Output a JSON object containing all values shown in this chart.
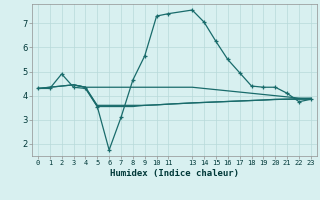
{
  "xlabel": "Humidex (Indice chaleur)",
  "bg_color": "#d8f0f0",
  "line_color": "#196b6b",
  "grid_color": "#b8dada",
  "xlim": [
    -0.5,
    23.5
  ],
  "ylim": [
    1.5,
    7.8
  ],
  "yticks": [
    2,
    3,
    4,
    5,
    6,
    7
  ],
  "curve1_x": [
    0,
    1,
    2,
    3,
    4,
    5,
    6,
    7,
    8,
    9,
    10,
    11,
    13,
    14,
    15,
    16,
    17,
    18,
    19,
    20,
    21,
    22,
    23
  ],
  "curve1_y": [
    4.3,
    4.3,
    4.9,
    4.35,
    4.3,
    3.55,
    1.75,
    3.1,
    4.65,
    5.65,
    7.3,
    7.4,
    7.55,
    7.05,
    6.25,
    5.5,
    4.95,
    4.4,
    4.35,
    4.35,
    4.1,
    3.75,
    3.85
  ],
  "curve2_x": [
    0,
    3,
    4,
    5,
    6,
    7,
    8,
    9,
    10,
    11,
    13,
    14,
    15,
    16,
    17,
    18,
    19,
    20,
    21,
    22,
    23
  ],
  "curve2_y": [
    4.3,
    4.45,
    4.35,
    4.35,
    4.35,
    4.35,
    4.35,
    4.35,
    4.35,
    4.35,
    4.35,
    4.3,
    4.25,
    4.2,
    4.15,
    4.1,
    4.05,
    4.0,
    3.95,
    3.9,
    3.88
  ],
  "curve3_x": [
    0,
    3,
    4,
    5,
    6,
    7,
    8,
    9,
    10,
    11,
    13,
    14,
    15,
    16,
    17,
    18,
    19,
    20,
    21,
    22,
    23
  ],
  "curve3_y": [
    4.3,
    4.45,
    4.35,
    3.6,
    3.6,
    3.6,
    3.6,
    3.6,
    3.62,
    3.65,
    3.7,
    3.72,
    3.74,
    3.76,
    3.78,
    3.8,
    3.82,
    3.84,
    3.86,
    3.88,
    3.9
  ],
  "curve4_x": [
    3,
    4,
    5,
    6,
    7,
    8,
    9,
    10,
    11,
    13,
    14,
    15,
    16,
    17,
    18,
    19,
    20,
    21,
    22,
    23
  ],
  "curve4_y": [
    4.45,
    4.35,
    3.55,
    3.55,
    3.55,
    3.55,
    3.6,
    3.62,
    3.65,
    3.7,
    3.72,
    3.74,
    3.76,
    3.78,
    3.8,
    3.82,
    3.85,
    3.85,
    3.85,
    3.85
  ],
  "xtick_positions": [
    0,
    1,
    2,
    3,
    4,
    5,
    6,
    7,
    8,
    9,
    10,
    11,
    13,
    14,
    15,
    16,
    17,
    18,
    19,
    20,
    21,
    22,
    23
  ],
  "xtick_labels": [
    "0",
    "1",
    "2",
    "3",
    "4",
    "5",
    "6",
    "7",
    "8",
    "9",
    "10",
    "11",
    "13",
    "14",
    "15",
    "16",
    "17",
    "18",
    "19",
    "20",
    "21",
    "22",
    "23"
  ]
}
